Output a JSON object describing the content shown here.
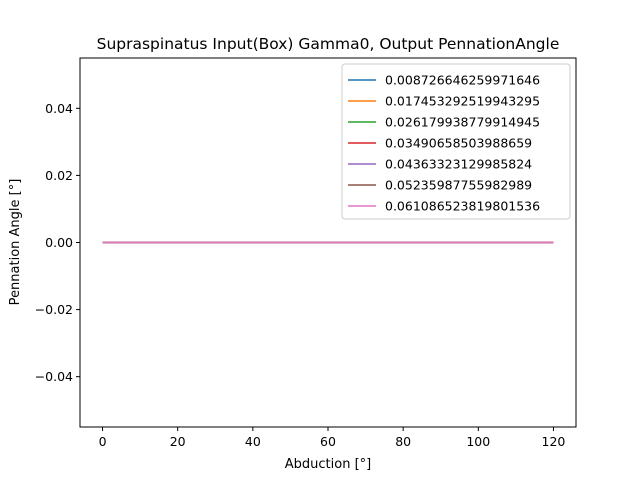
{
  "chart_data": {
    "type": "line",
    "title": "Supraspinatus Input(Box) Gamma0, Output PennationAngle",
    "xlabel": "Abduction [°]",
    "ylabel": "Pennation Angle [°]",
    "xlim": [
      -6,
      126
    ],
    "ylim": [
      -0.055,
      0.055
    ],
    "x_ticks": [
      0,
      20,
      40,
      60,
      80,
      100,
      120
    ],
    "y_ticks": [
      -0.04,
      -0.02,
      0.0,
      0.02,
      0.04
    ],
    "x_tick_labels": [
      "0",
      "20",
      "40",
      "60",
      "80",
      "100",
      "120"
    ],
    "y_tick_labels": [
      "−0.04",
      "−0.02",
      "0.00",
      "0.02",
      "0.04"
    ],
    "grid": false,
    "legend_position": "top-right",
    "x": [
      0,
      120
    ],
    "series": [
      {
        "name": "0.008726646259971646",
        "color": "#1f77b4",
        "values": [
          0,
          0
        ]
      },
      {
        "name": "0.017453292519943295",
        "color": "#ff7f0e",
        "values": [
          0,
          0
        ]
      },
      {
        "name": "0.026179938779914945",
        "color": "#2ca02c",
        "values": [
          0,
          0
        ]
      },
      {
        "name": "0.03490658503988659",
        "color": "#d62728",
        "values": [
          0,
          0
        ]
      },
      {
        "name": "0.04363323129985824",
        "color": "#9467bd",
        "values": [
          0,
          0
        ]
      },
      {
        "name": "0.05235987755982989",
        "color": "#8c564b",
        "values": [
          0,
          0
        ]
      },
      {
        "name": "0.061086523819801536",
        "color": "#e377c2",
        "values": [
          0,
          0
        ]
      }
    ]
  }
}
